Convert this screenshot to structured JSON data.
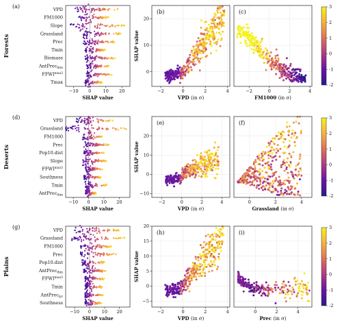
{
  "figure": {
    "colormap": [
      "#2b1a8c",
      "#6a14a6",
      "#b03a86",
      "#e0705a",
      "#f6b23d",
      "#f4f21f"
    ],
    "colorbar_ticks": [
      "-2",
      "-1",
      "0",
      "1",
      "2",
      "3"
    ]
  },
  "chart_data": [
    {
      "type": "scatter",
      "kind": "shap-beeswarm",
      "panel": "(a)",
      "row_label": "Forests",
      "xlabel": "SHAP value",
      "xlim": [
        -15,
        25
      ],
      "xticks": [
        "−10",
        "0",
        "10",
        "20"
      ],
      "features": [
        {
          "label": "VPD",
          "min": -10,
          "max": 18,
          "skew": 0.55
        },
        {
          "label": "FM1000",
          "min": -7,
          "max": 12,
          "skew": 0.5
        },
        {
          "label": "Slope",
          "min": -12,
          "max": 22,
          "skew": 0.45
        },
        {
          "label": "Grassland",
          "min": -4,
          "max": 20,
          "skew": 0.2
        },
        {
          "label": "Prec",
          "min": -4,
          "max": 16,
          "skew": 0.3
        },
        {
          "label": "Tmin",
          "min": -3,
          "max": 10,
          "skew": 0.3
        },
        {
          "label": "Biomass",
          "min": -3,
          "max": 16,
          "skew": 0.25
        },
        {
          "label": "AntPrec",
          "sub": "lhm",
          "min": -2,
          "max": 12,
          "skew": 0.25
        },
        {
          "label": "FFWI",
          "sup": "max3",
          "min": -2,
          "max": 14,
          "skew": 0.3
        },
        {
          "label": "Tmax",
          "min": -3,
          "max": 8,
          "skew": 0.3
        }
      ]
    },
    {
      "type": "scatter",
      "kind": "shap-dependence",
      "panel": "(b)",
      "xlabel": "VPD",
      "xlabel_unit": "(in σ)",
      "ylabel": "SHAP value",
      "xlim": [
        -2.8,
        4.2
      ],
      "ylim": [
        -5.5,
        25
      ],
      "xticks": [
        -2,
        0,
        2,
        4
      ],
      "yticks": [
        0,
        10,
        20
      ],
      "shape": "rising",
      "points": 420
    },
    {
      "type": "scatter",
      "kind": "shap-dependence",
      "panel": "(c)",
      "xlabel": "FM1000",
      "xlabel_unit": "(in σ)",
      "xlim": [
        -3.5,
        4.2
      ],
      "ylim": [
        -5.5,
        25
      ],
      "xticks": [
        -2,
        0,
        2,
        4
      ],
      "yticks": [],
      "shape": "falling",
      "points": 360
    },
    {
      "type": "scatter",
      "kind": "shap-beeswarm",
      "panel": "(d)",
      "row_label": "Deserts",
      "xlabel": "SHAP value",
      "xlim": [
        -15,
        27
      ],
      "xticks": [
        "−10",
        "0",
        "10",
        "20"
      ],
      "features": [
        {
          "label": "VPD",
          "min": -8,
          "max": 16,
          "skew": 0.55
        },
        {
          "label": "Grassland",
          "min": -15,
          "max": 26,
          "skew": 0.4
        },
        {
          "label": "FM1000",
          "min": -4,
          "max": 9,
          "skew": 0.35
        },
        {
          "label": "Prec",
          "min": -3,
          "max": 14,
          "skew": 0.25
        },
        {
          "label": "Pop10.dist",
          "min": -3,
          "max": 10,
          "skew": 0.3
        },
        {
          "label": "Slope",
          "min": -4,
          "max": 12,
          "skew": 0.3
        },
        {
          "label": "FFWI",
          "sup": "max3",
          "min": -2,
          "max": 9,
          "skew": 0.3
        },
        {
          "label": "Southness",
          "min": -3,
          "max": 8,
          "skew": 0.3
        },
        {
          "label": "Tmin",
          "min": -2,
          "max": 12,
          "skew": 0.25
        },
        {
          "label": "AntPrec",
          "sub": "lhm",
          "min": -2,
          "max": 5,
          "skew": 0.3
        }
      ]
    },
    {
      "type": "scatter",
      "kind": "shap-dependence",
      "panel": "(e)",
      "xlabel": "VPD",
      "xlabel_unit": "(in σ)",
      "ylabel": "SHAP value",
      "xlim": [
        -3,
        4.8
      ],
      "ylim": [
        -12,
        30
      ],
      "xticks": [
        -2,
        0,
        2,
        4
      ],
      "yticks": [
        -10,
        0,
        10,
        20
      ],
      "shape": "rising-flat",
      "points": 360
    },
    {
      "type": "scatter",
      "kind": "shap-dependence",
      "panel": "(f)",
      "xlabel": "Grassland",
      "xlabel_unit": "(in σ)",
      "xlim": [
        -1.2,
        4.8
      ],
      "ylim": [
        -12,
        30
      ],
      "xticks": [
        0,
        2,
        4
      ],
      "yticks": [],
      "shape": "fan",
      "points": 420
    },
    {
      "type": "scatter",
      "kind": "shap-beeswarm",
      "panel": "(g)",
      "row_label": "Plains",
      "xlabel": "SHAP value",
      "xlim": [
        -16,
        27
      ],
      "xticks": [
        "−10",
        "0",
        "10",
        "20"
      ],
      "features": [
        {
          "label": "VPD",
          "min": -10,
          "max": 20,
          "skew": 0.55
        },
        {
          "label": "Grassland",
          "min": -12,
          "max": 24,
          "skew": 0.4
        },
        {
          "label": "FM1000",
          "min": -6,
          "max": 15,
          "skew": 0.45
        },
        {
          "label": "Prec",
          "min": -6,
          "max": 18,
          "skew": 0.3
        },
        {
          "label": "Pop10.dist",
          "min": -5,
          "max": 10,
          "skew": 0.3
        },
        {
          "label": "AntPrec",
          "sub": "lhm",
          "min": -4,
          "max": 12,
          "skew": 0.3
        },
        {
          "label": "FFWI",
          "sup": "max3",
          "min": -3,
          "max": 10,
          "skew": 0.3
        },
        {
          "label": "Tmin",
          "min": -3,
          "max": 9,
          "skew": 0.3
        },
        {
          "label": "AntPrec",
          "sub": "lyr",
          "min": -3,
          "max": 9,
          "skew": 0.3
        },
        {
          "label": "Southness",
          "min": -3,
          "max": 8,
          "skew": 0.3
        }
      ]
    },
    {
      "type": "scatter",
      "kind": "shap-dependence",
      "panel": "(h)",
      "xlabel": "VPD",
      "xlabel_unit": "(in σ)",
      "ylabel": "SHAP value",
      "xlim": [
        -2.8,
        4.2
      ],
      "ylim": [
        -7,
        20
      ],
      "xticks": [
        -2,
        0,
        2,
        4
      ],
      "yticks": [
        -5,
        0,
        5,
        10,
        15,
        20
      ],
      "shape": "rising",
      "points": 380
    },
    {
      "type": "scatter",
      "kind": "shap-dependence",
      "panel": "(i)",
      "xlabel": "Prec",
      "xlabel_unit": "(in σ)",
      "xlim": [
        -2,
        5.3
      ],
      "ylim": [
        -7,
        20
      ],
      "xticks": [
        0,
        2,
        4
      ],
      "yticks": [],
      "shape": "decay",
      "points": 260
    }
  ]
}
